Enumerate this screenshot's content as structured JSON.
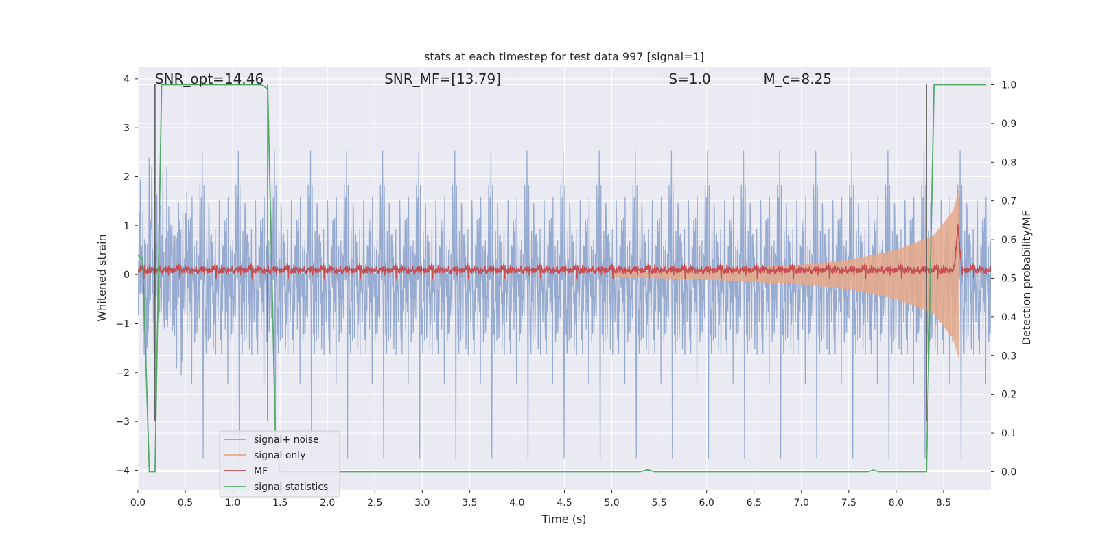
{
  "chart_data": {
    "type": "line",
    "title": "stats at each timestep for test data 997 [signal=1]",
    "xlabel": "Time (s)",
    "ylabel": "Whitened strain",
    "y2label": "Detection probability/MF",
    "xlim": [
      0.0,
      9.0
    ],
    "ylim": [
      -4.4,
      4.25
    ],
    "y2lim": [
      -0.047,
      1.047
    ],
    "xticks": [
      0.0,
      0.5,
      1.0,
      1.5,
      2.0,
      2.5,
      3.0,
      3.5,
      4.0,
      4.5,
      5.0,
      5.5,
      6.0,
      6.5,
      7.0,
      7.5,
      8.0,
      8.5
    ],
    "xtick_labels": [
      "0.0",
      "0.5",
      "1.0",
      "1.5",
      "2.0",
      "2.5",
      "3.0",
      "3.5",
      "4.0",
      "4.5",
      "5.0",
      "5.5",
      "6.0",
      "6.5",
      "7.0",
      "7.5",
      "8.0",
      "8.5"
    ],
    "yticks": [
      -4,
      -3,
      -2,
      -1,
      0,
      1,
      2,
      3,
      4
    ],
    "ytick_labels": [
      "−4",
      "−3",
      "−2",
      "−1",
      "0",
      "1",
      "2",
      "3",
      "4"
    ],
    "y2ticks": [
      0.0,
      0.1,
      0.2,
      0.3,
      0.4,
      0.5,
      0.6,
      0.7,
      0.8,
      0.9,
      1.0
    ],
    "y2tick_labels": [
      "0.0",
      "0.1",
      "0.2",
      "0.3",
      "0.4",
      "0.5",
      "0.6",
      "0.7",
      "0.8",
      "0.9",
      "1.0"
    ],
    "annotations": [
      {
        "name": "snr-opt",
        "text": "SNR_opt=14.46",
        "x": 0.18
      },
      {
        "name": "snr-mf",
        "text": "SNR_MF=[13.79]",
        "x": 2.6
      },
      {
        "name": "s-value",
        "text": "S=1.0",
        "x": 5.6
      },
      {
        "name": "mc-value",
        "text": "M_c=8.25",
        "x": 6.6
      }
    ],
    "annotation_y": 4.0,
    "legend": {
      "placement": "lower-left",
      "entries": [
        {
          "label": "signal+ noise",
          "color": "#8ea4cc"
        },
        {
          "label": "signal only",
          "color": "#e8a98a"
        },
        {
          "label": "MF",
          "color": "#c44e52"
        },
        {
          "label": "signal statistics",
          "color": "#55a868"
        }
      ]
    },
    "series": [
      {
        "name": "signal+ noise",
        "axis": "left",
        "kind": "noise",
        "amplitude_std": 0.95,
        "offset": 0.0,
        "x_range": [
          0.0,
          9.0
        ],
        "color": "#8ea4cc"
      },
      {
        "name": "signal only",
        "axis": "left",
        "kind": "chirp",
        "x_range": [
          5.0,
          8.66
        ],
        "envelope": [
          [
            5.0,
            0.05
          ],
          [
            6.0,
            0.1
          ],
          [
            7.0,
            0.2
          ],
          [
            7.5,
            0.3
          ],
          [
            8.0,
            0.5
          ],
          [
            8.4,
            0.8
          ],
          [
            8.6,
            1.3
          ],
          [
            8.66,
            1.7
          ]
        ],
        "color": "#e8a98a"
      },
      {
        "name": "MF",
        "axis": "left",
        "kind": "noise",
        "offset": 0.1,
        "amplitude_std": 0.05,
        "x_range": [
          0.0,
          9.0
        ],
        "peak": {
          "x": 8.65,
          "y": 1.0
        },
        "color": "#c44e52"
      },
      {
        "name": "signal statistics",
        "axis": "right",
        "kind": "line",
        "color": "#55a868",
        "x": [
          0.0,
          0.05,
          0.12,
          0.18,
          0.25,
          1.3,
          1.37,
          1.45,
          1.5,
          5.3,
          5.38,
          5.45,
          7.7,
          7.76,
          7.82,
          8.32,
          8.4,
          8.95
        ],
        "y": [
          0.56,
          0.55,
          0.0,
          0.0,
          1.0,
          1.0,
          0.99,
          0.1,
          0.0,
          0.0,
          0.005,
          0.0,
          0.0,
          0.004,
          0.0,
          0.0,
          1.0,
          1.0
        ]
      },
      {
        "name": "markers",
        "axis": "left",
        "kind": "vlines",
        "color": "#555555",
        "x": [
          0.18,
          1.37,
          8.32
        ],
        "ymin": -3.0,
        "ymax": 3.9
      }
    ]
  }
}
